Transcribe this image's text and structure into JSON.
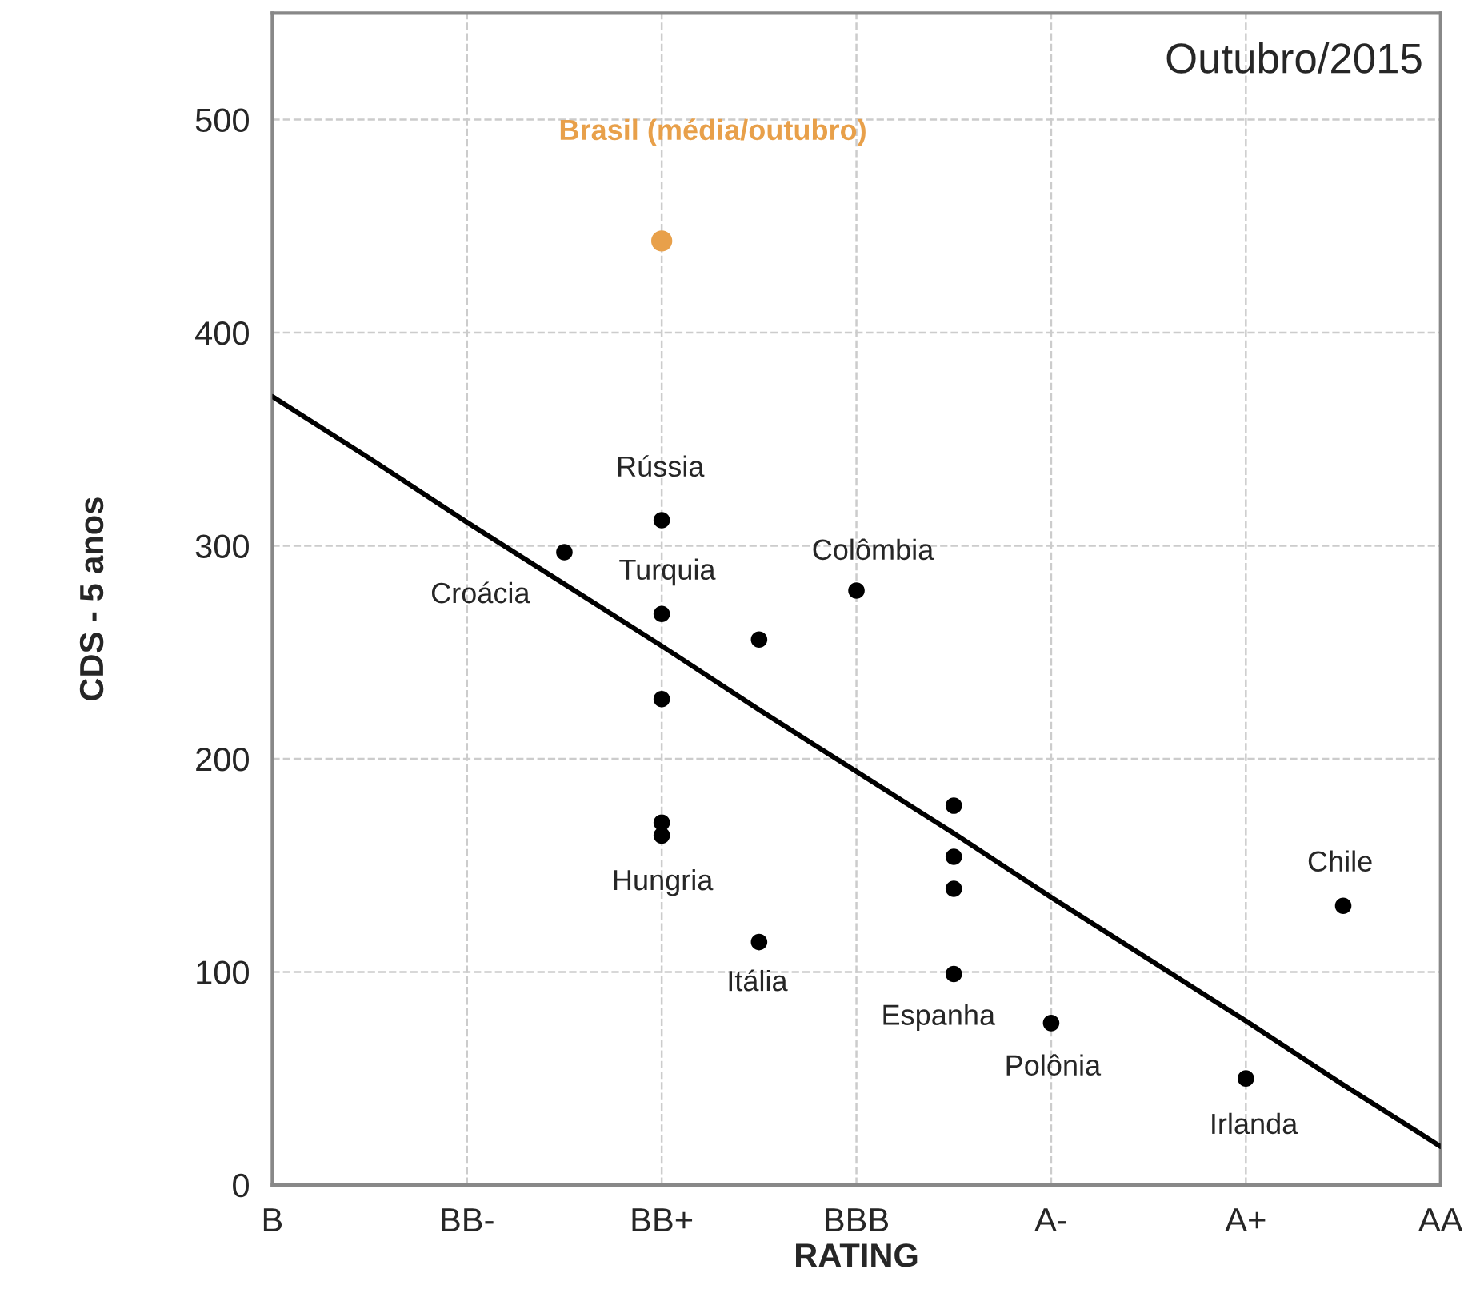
{
  "chart_data": {
    "type": "scatter",
    "title": "Outubro/2015",
    "xlabel": "RATING",
    "ylabel": "CDS - 5 anos",
    "categories": [
      "B",
      null,
      "BB-",
      null,
      "BB+",
      null,
      "BBB",
      null,
      "A-",
      null,
      "A+",
      null,
      "AA"
    ],
    "ylim": [
      0,
      550
    ],
    "yticks": [
      0,
      100,
      200,
      300,
      400,
      500
    ],
    "grid": true,
    "marker": "circle",
    "series": [
      {
        "type": "line",
        "color": "#000000",
        "values": [
          370,
          341,
          311,
          282,
          253,
          223,
          194,
          165,
          135,
          106,
          77,
          47,
          18
        ],
        "line_style": "solid",
        "marker": "none"
      },
      {
        "color": "#000000",
        "values": [
          null,
          null,
          null,
          297,
          312,
          256,
          279,
          178,
          76,
          null,
          50,
          131,
          null
        ]
      },
      {
        "color": "#000000",
        "values": [
          null,
          null,
          null,
          null,
          268,
          114,
          null,
          154,
          null,
          null,
          null,
          null,
          null
        ]
      },
      {
        "color": "#000000",
        "values": [
          null,
          null,
          null,
          null,
          228,
          null,
          null,
          139,
          null,
          null,
          null,
          null,
          null
        ]
      },
      {
        "color": "#000000",
        "values": [
          null,
          null,
          null,
          null,
          170,
          null,
          null,
          99,
          null,
          null,
          null,
          null,
          null
        ]
      },
      {
        "color": "#000000",
        "values": [
          null,
          null,
          null,
          null,
          164,
          null,
          null,
          null,
          null,
          null,
          null,
          null,
          null
        ]
      },
      {
        "name": "Brasil (média/outubro)",
        "color": "#e8a04a",
        "values": [
          null,
          null,
          null,
          null,
          443,
          null,
          null,
          null,
          null,
          null,
          null,
          null,
          null
        ]
      }
    ],
    "annotations": [
      "Rússia",
      "Croácia",
      "Turquia",
      "Colômbia",
      "Hungria",
      "Itália",
      "Espanha",
      "Polônia",
      "Irlanda",
      "Chile"
    ]
  }
}
